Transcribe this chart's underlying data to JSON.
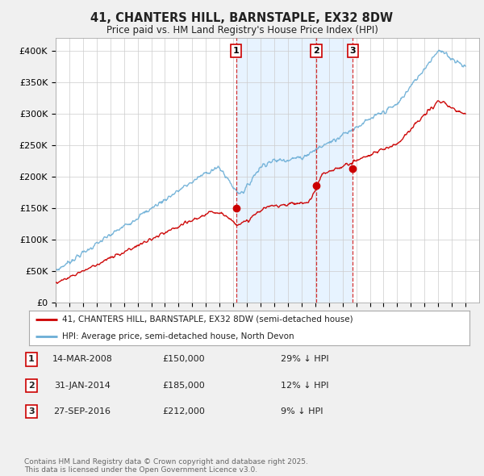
{
  "title": "41, CHANTERS HILL, BARNSTAPLE, EX32 8DW",
  "subtitle": "Price paid vs. HM Land Registry's House Price Index (HPI)",
  "hpi_color": "#6baed6",
  "price_color": "#cc0000",
  "background": "#f0f0f0",
  "plot_bg": "#ffffff",
  "fill_color": "#ddeeff",
  "ylim": [
    0,
    420000
  ],
  "yticks": [
    0,
    50000,
    100000,
    150000,
    200000,
    250000,
    300000,
    350000,
    400000
  ],
  "ytick_labels": [
    "£0",
    "£50K",
    "£100K",
    "£150K",
    "£200K",
    "£250K",
    "£300K",
    "£350K",
    "£400K"
  ],
  "sale_dates": [
    2008.2,
    2014.08,
    2016.75
  ],
  "sale_prices": [
    150000,
    185000,
    212000
  ],
  "sale_labels": [
    "1",
    "2",
    "3"
  ],
  "legend_entries": [
    {
      "label": "41, CHANTERS HILL, BARNSTAPLE, EX32 8DW (semi-detached house)",
      "color": "#cc0000"
    },
    {
      "label": "HPI: Average price, semi-detached house, North Devon",
      "color": "#6baed6"
    }
  ],
  "table_rows": [
    {
      "num": "1",
      "date": "14-MAR-2008",
      "price": "£150,000",
      "hpi": "29% ↓ HPI"
    },
    {
      "num": "2",
      "date": "31-JAN-2014",
      "price": "£185,000",
      "hpi": "12% ↓ HPI"
    },
    {
      "num": "3",
      "date": "27-SEP-2016",
      "price": "£212,000",
      "hpi": "9% ↓ HPI"
    }
  ],
  "footer": "Contains HM Land Registry data © Crown copyright and database right 2025.\nThis data is licensed under the Open Government Licence v3.0."
}
